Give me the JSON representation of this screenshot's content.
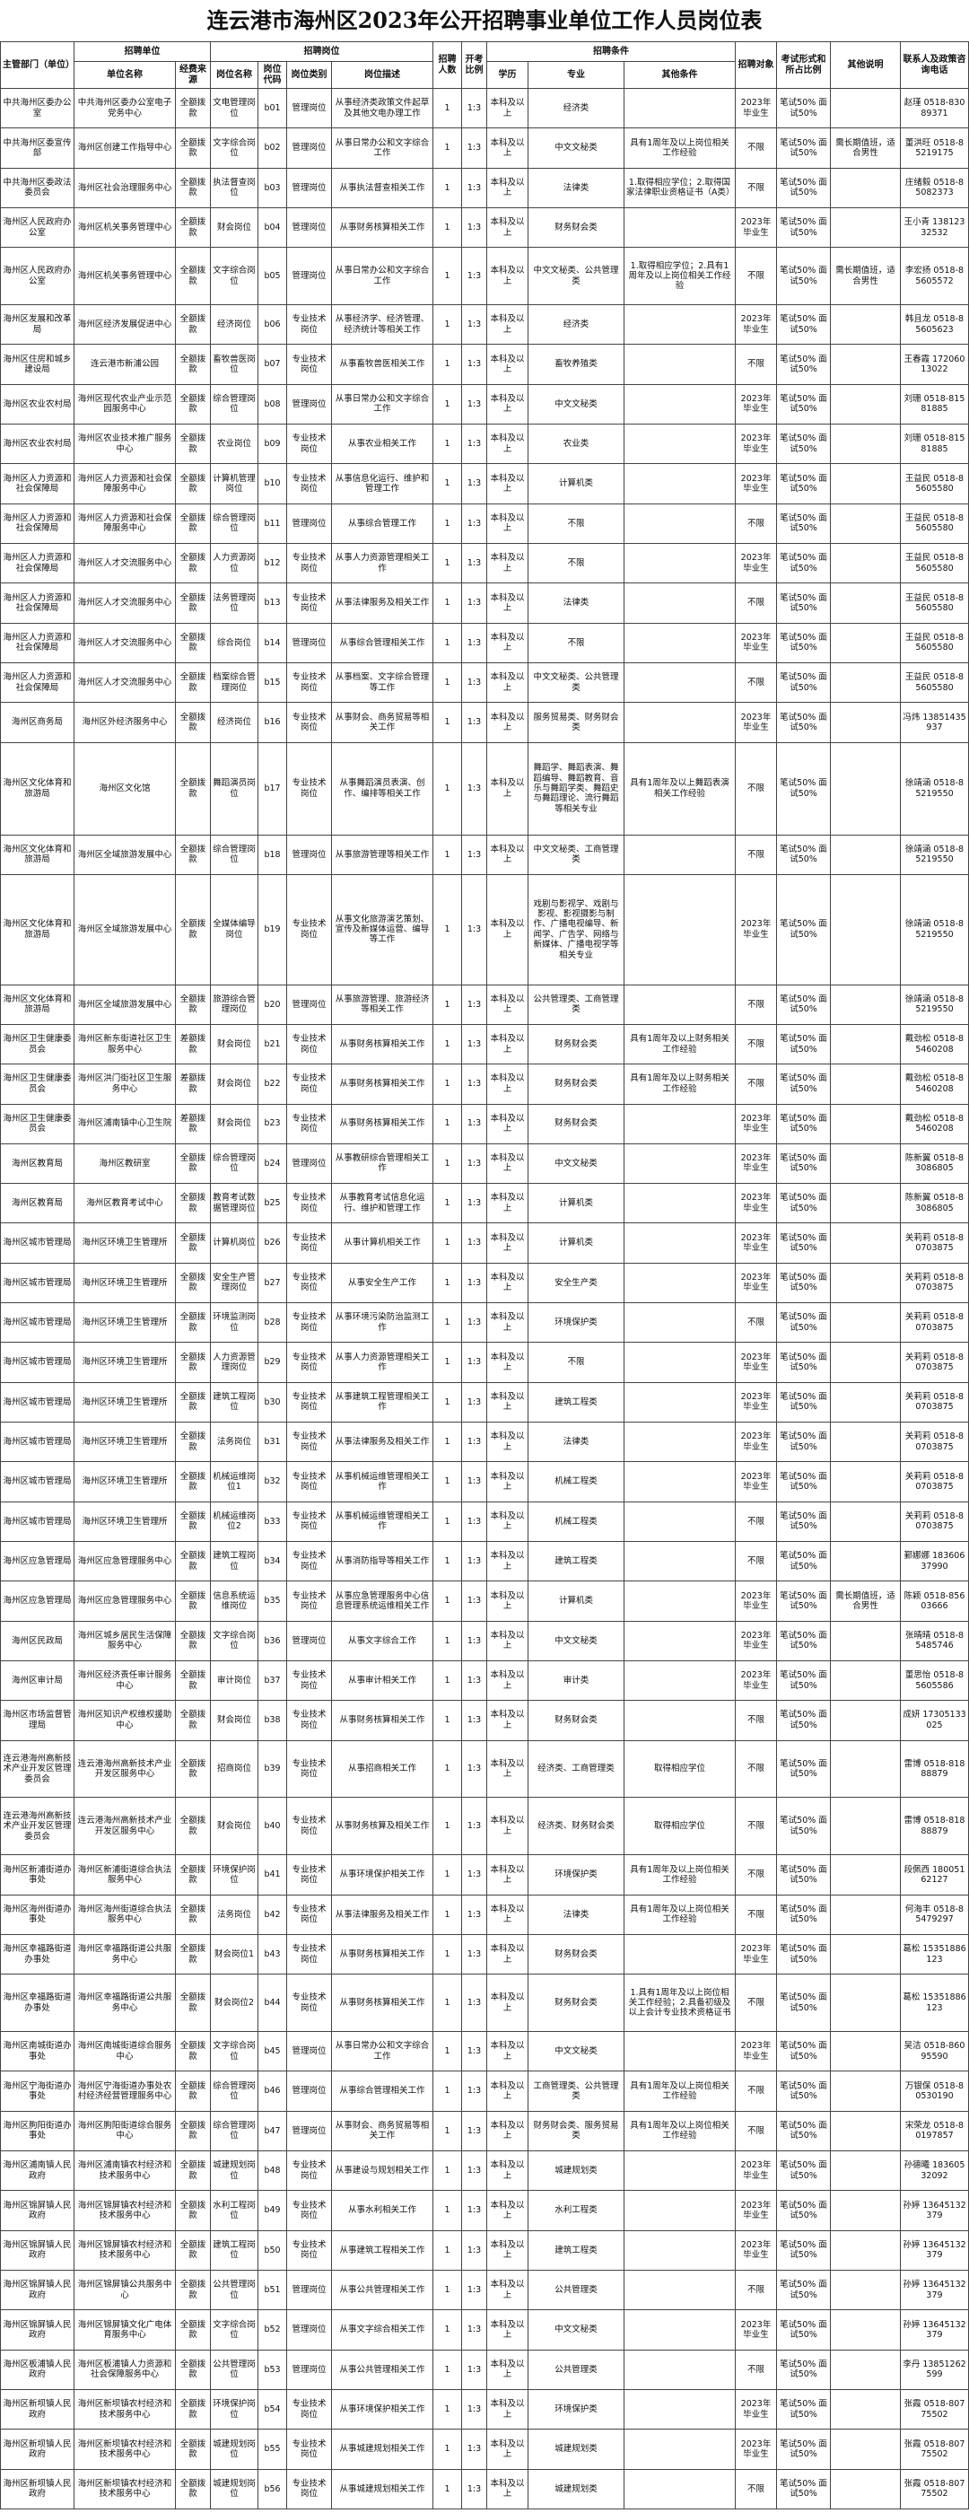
{
  "title": "连云港市海州区2023年公开招聘事业单位工作人员岗位表",
  "header": {
    "groups": [
      "招聘单位",
      "招聘岗位",
      "招聘条件"
    ],
    "columns": [
      "主管部门（单位）",
      "单位名称",
      "经费来源",
      "岗位名称",
      "岗位代码",
      "岗位类别",
      "岗位描述",
      "招聘人数",
      "开考比例",
      "学历",
      "专业",
      "其他条件",
      "招聘对象",
      "考试形式和所占比例",
      "其他说明",
      "联系人及政策咨询电话"
    ]
  },
  "table": {
    "rows": [
      [
        "中共海州区委办公室",
        "中共海州区委办公室电子党务中心",
        "全额拨款",
        "文电管理岗位",
        "b01",
        "管理岗位",
        "从事经济类政策文件起草及其他文电办理工作",
        "1",
        "1:3",
        "本科及以上",
        "经济类",
        null,
        "2023年毕业生",
        "笔试50% 面试50%",
        null,
        "赵瑾 0518-83089371"
      ],
      [
        "中共海州区委宣传部",
        "海州区创建工作指导中心",
        "全额拨款",
        "文字综合岗位",
        "b02",
        "管理岗位",
        "从事日常办公和文字综合工作",
        "1",
        "1:3",
        "本科及以上",
        "中文文秘类",
        "具有1周年及以上岗位相关工作经验",
        "不限",
        "笔试50% 面试50%",
        "需长期值班，适合男性",
        "董洪旺 0518-85219175"
      ],
      [
        "中共海州区委政法委员会",
        "海州区社会治理服务中心",
        "全额拨款",
        "执法督查岗位",
        "b03",
        "管理岗位",
        "从事执法督查相关工作",
        "1",
        "1:3",
        "本科及以上",
        "法律类",
        "1.取得相应学位；2.取得国家法律职业资格证书（A类）",
        "不限",
        "笔试50% 面试50%",
        null,
        "庄绪毅 0518-85082373"
      ],
      [
        "海州区人民政府办公室",
        "海州区机关事务管理中心",
        "全额拨款",
        "财会岗位",
        "b04",
        "管理岗位",
        "从事财务核算相关工作",
        "1",
        "1:3",
        "本科及以上",
        "财务财会类",
        null,
        "2023年毕业生",
        "笔试50% 面试50%",
        null,
        "王小青 13812332532"
      ],
      [
        "海州区人民政府办公室",
        "海州区机关事务管理中心",
        "全额拨款",
        "文字综合岗位",
        "b05",
        "管理岗位",
        "从事日常办公和文字综合工作",
        "1",
        "1:3",
        "本科及以上",
        "中文文秘类、公共管理类",
        "1.取得相应学位；2.具有1周年及以上岗位相关工作经验",
        "不限",
        "笔试50% 面试50%",
        "需长期值班，适合男性",
        "李宏扬 0518-85605572"
      ],
      [
        "海州区发展和改革局",
        "海州区经济发展促进中心",
        "全额拨款",
        "经济岗位",
        "b06",
        "专业技术岗位",
        "从事经济学、经济管理、经济统计等相关工作",
        "1",
        "1:3",
        "本科及以上",
        "经济类",
        null,
        "2023年毕业生",
        "笔试50% 面试50%",
        null,
        "韩且龙 0518-85605623"
      ],
      [
        "海州区住房和城乡建设局",
        "连云港市新浦公园",
        "全额拨款",
        "畜牧兽医岗位",
        "b07",
        "专业技术岗位",
        "从事畜牧兽医相关工作",
        "1",
        "1:3",
        "本科及以上",
        "畜牧养殖类",
        null,
        "不限",
        "笔试50% 面试50%",
        null,
        "王春霞 17206013022"
      ],
      [
        "海州区农业农村局",
        "海州区现代农业产业示范园服务中心",
        "全额拨款",
        "综合管理岗位",
        "b08",
        "管理岗位",
        "从事日常办公和文字综合工作",
        "1",
        "1:3",
        "本科及以上",
        "中文文秘类",
        null,
        "2023年毕业生",
        "笔试50% 面试50%",
        null,
        "刘珊 0518-81581885"
      ],
      [
        "海州区农业农村局",
        "海州区农业技术推广服务中心",
        "全额拨款",
        "农业岗位",
        "b09",
        "专业技术岗位",
        "从事农业相关工作",
        "1",
        "1:3",
        "本科及以上",
        "农业类",
        null,
        "2023年毕业生",
        "笔试50% 面试50%",
        null,
        "刘珊 0518-81581885"
      ],
      [
        "海州区人力资源和社会保障局",
        "海州区人力资源和社会保障服务中心",
        "全额拨款",
        "计算机管理岗位",
        "b10",
        "专业技术岗位",
        "从事信息化运行、维护和管理工作",
        "1",
        "1:3",
        "本科及以上",
        "计算机类",
        null,
        "2023年毕业生",
        "笔试50% 面试50%",
        null,
        "王益民 0518-85605580"
      ],
      [
        "海州区人力资源和社会保障局",
        "海州区人力资源和社会保障服务中心",
        "全额拨款",
        "综合管理岗位",
        "b11",
        "管理岗位",
        "从事综合管理工作",
        "1",
        "1:3",
        "本科及以上",
        "不限",
        null,
        "不限",
        "笔试50% 面试50%",
        null,
        "王益民 0518-85605580"
      ],
      [
        "海州区人力资源和社会保障局",
        "海州区人才交流服务中心",
        "全额拨款",
        "人力资源岗位",
        "b12",
        "专业技术岗位",
        "从事人力资源管理相关工作",
        "1",
        "1:3",
        "本科及以上",
        "不限",
        null,
        "2023年毕业生",
        "笔试50% 面试50%",
        null,
        "王益民 0518-85605580"
      ],
      [
        "海州区人力资源和社会保障局",
        "海州区人才交流服务中心",
        "全额拨款",
        "法务管理岗位",
        "b13",
        "专业技术岗位",
        "从事法律服务及相关工作",
        "1",
        "1:3",
        "本科及以上",
        "法律类",
        null,
        "不限",
        "笔试50% 面试50%",
        null,
        "王益民 0518-85605580"
      ],
      [
        "海州区人力资源和社会保障局",
        "海州区人才交流服务中心",
        "全额拨款",
        "综合岗位",
        "b14",
        "管理岗位",
        "从事综合管理相关工作",
        "1",
        "1:3",
        "本科及以上",
        "不限",
        null,
        "2023年毕业生",
        "笔试50% 面试50%",
        null,
        "王益民 0518-85605580"
      ],
      [
        "海州区人力资源和社会保障局",
        "海州区人才交流服务中心",
        "全额拨款",
        "档案综合管理岗位",
        "b15",
        "专业技术岗位",
        "从事档案、文字综合管理等工作",
        "1",
        "1:3",
        "本科及以上",
        "中文文秘类、公共管理类",
        null,
        "不限",
        "笔试50% 面试50%",
        null,
        "王益民 0518-85605580"
      ],
      [
        "海州区商务局",
        "海州区外经济服务中心",
        "全额拨款",
        "经济岗位",
        "b16",
        "专业技术岗位",
        "从事财会、商务贸易等相关工作",
        "1",
        "1:3",
        "本科及以上",
        "服务贸易类、财务财会类",
        null,
        "2023年毕业生",
        "笔试50% 面试50%",
        null,
        "冯炜 13851435937"
      ],
      [
        "海州区文化体育和旅游局",
        "海州区文化馆",
        "全额拨款",
        "舞蹈演员岗位",
        "b17",
        "专业技术岗位",
        "从事舞蹈演员表演、创作、编排等相关工作",
        "1",
        "1:3",
        "本科及以上",
        "舞蹈学、舞蹈表演、舞蹈编导、舞蹈教育、音乐与舞蹈学类、舞蹈史与舞蹈理论、流行舞蹈等相关专业",
        "具有1周年及以上舞蹈表演相关工作经验",
        "不限",
        "笔试50% 面试50%",
        null,
        "徐靖涵 0518-85219550"
      ],
      [
        "海州区文化体育和旅游局",
        "海州区全域旅游发展中心",
        "全额拨款",
        "综合管理岗位",
        "b18",
        "管理岗位",
        "从事旅游管理等相关工作",
        "1",
        "1:3",
        "本科及以上",
        "中文文秘类、工商管理类",
        null,
        "不限",
        "笔试50% 面试50%",
        null,
        "徐靖涵 0518-85219550"
      ],
      [
        "海州区文化体育和旅游局",
        "海州区全域旅游发展中心",
        "全额拨款",
        "全媒体编导岗位",
        "b19",
        "专业技术岗位",
        "从事文化旅游演艺策划、宣传及新媒体运营、编导等工作",
        "1",
        "1:3",
        "本科及以上",
        "戏剧与影视学、戏剧与影视、影视摄影与制作、广播电视编导、新闻学、广告学、网络与新媒体、广播电视学等相关专业",
        null,
        "2023年毕业生",
        "笔试50% 面试50%",
        null,
        "徐靖涵 0518-85219550"
      ],
      [
        "海州区文化体育和旅游局",
        "海州区全域旅游发展中心",
        "全额拨款",
        "旅游综合管理岗位",
        "b20",
        "管理岗位",
        "从事旅游管理、旅游经济等相关工作",
        "1",
        "1:3",
        "本科及以上",
        "公共管理类、工商管理类",
        null,
        "不限",
        "笔试50% 面试50%",
        null,
        "徐靖涵 0518-85219550"
      ],
      [
        "海州区卫生健康委员会",
        "海州区新东街道社区卫生服务中心",
        "差额拨款",
        "财会岗位",
        "b21",
        "专业技术岗位",
        "从事财务核算相关工作",
        "1",
        "1:3",
        "本科及以上",
        "财务财会类",
        "具有1周年及以上财务相关工作经验",
        "不限",
        "笔试50% 面试50%",
        null,
        "戴劲松 0518-85460208"
      ],
      [
        "海州区卫生健康委员会",
        "海州区洪门街社区卫生服务中心",
        "差额拨款",
        "财会岗位",
        "b22",
        "专业技术岗位",
        "从事财务核算相关工作",
        "1",
        "1:3",
        "本科及以上",
        "财务财会类",
        "具有1周年及以上财务相关工作经验",
        "不限",
        "笔试50% 面试50%",
        null,
        "戴劲松 0518-85460208"
      ],
      [
        "海州区卫生健康委员会",
        "海州区浦南镇中心卫生院",
        "差额拨款",
        "财会岗位",
        "b23",
        "专业技术岗位",
        "从事财务核算相关工作",
        "1",
        "1:3",
        "本科及以上",
        "财务财会类",
        null,
        "2023年毕业生",
        "笔试50% 面试50%",
        null,
        "戴劲松 0518-85460208"
      ],
      [
        "海州区教育局",
        "海州区教研室",
        "全额拨款",
        "综合管理岗位",
        "b24",
        "管理岗位",
        "从事教研综合管理相关工作",
        "1",
        "1:3",
        "本科及以上",
        "中文文秘类",
        null,
        "2023年毕业生",
        "笔试50% 面试50%",
        null,
        "陈新翼 0518-83086805"
      ],
      [
        "海州区教育局",
        "海州区教育考试中心",
        "全额拨款",
        "教育考试数据管理岗位",
        "b25",
        "专业技术岗位",
        "从事教育考试信息化运行、维护和管理工作",
        "1",
        "1:3",
        "本科及以上",
        "计算机类",
        null,
        "2023年毕业生",
        "笔试50% 面试50%",
        null,
        "陈新翼 0518-83086805"
      ],
      [
        "海州区城市管理局",
        "海州区环境卫生管理所",
        "全额拨款",
        "计算机岗位",
        "b26",
        "专业技术岗位",
        "从事计算机相关工作",
        "1",
        "1:3",
        "本科及以上",
        "计算机类",
        null,
        "2023年毕业生",
        "笔试50% 面试50%",
        null,
        "关莉莉 0518-80703875"
      ],
      [
        "海州区城市管理局",
        "海州区环境卫生管理所",
        "全额拨款",
        "安全生产管理岗位",
        "b27",
        "专业技术岗位",
        "从事安全生产工作",
        "1",
        "1:3",
        "本科及以上",
        "安全生产类",
        null,
        "2023年毕业生",
        "笔试50% 面试50%",
        null,
        "关莉莉 0518-80703875"
      ],
      [
        "海州区城市管理局",
        "海州区环境卫生管理所",
        "全额拨款",
        "环境监测岗位",
        "b28",
        "专业技术岗位",
        "从事环境污染防治监测工作",
        "1",
        "1:3",
        "本科及以上",
        "环境保护类",
        null,
        "不限",
        "笔试50% 面试50%",
        null,
        "关莉莉 0518-80703875"
      ],
      [
        "海州区城市管理局",
        "海州区环境卫生管理所",
        "全额拨款",
        "人力资源管理岗位",
        "b29",
        "专业技术岗位",
        "从事人力资源管理相关工作",
        "1",
        "1:3",
        "本科及以上",
        "不限",
        null,
        "2023年毕业生",
        "笔试50% 面试50%",
        null,
        "关莉莉 0518-80703875"
      ],
      [
        "海州区城市管理局",
        "海州区环境卫生管理所",
        "全额拨款",
        "建筑工程岗位",
        "b30",
        "专业技术岗位",
        "从事建筑工程管理相关工作",
        "1",
        "1:3",
        "本科及以上",
        "建筑工程类",
        null,
        "2023年毕业生",
        "笔试50% 面试50%",
        null,
        "关莉莉 0518-80703875"
      ],
      [
        "海州区城市管理局",
        "海州区环境卫生管理所",
        "全额拨款",
        "法务岗位",
        "b31",
        "专业技术岗位",
        "从事法律服务及相关工作",
        "1",
        "1:3",
        "本科及以上",
        "法律类",
        null,
        "2023年毕业生",
        "笔试50% 面试50%",
        null,
        "关莉莉 0518-80703875"
      ],
      [
        "海州区城市管理局",
        "海州区环境卫生管理所",
        "全额拨款",
        "机械运维岗位1",
        "b32",
        "专业技术岗位",
        "从事机械运维管理相关工作",
        "1",
        "1:3",
        "本科及以上",
        "机械工程类",
        null,
        "2023年毕业生",
        "笔试50% 面试50%",
        null,
        "关莉莉 0518-80703875"
      ],
      [
        "海州区城市管理局",
        "海州区环境卫生管理所",
        "全额拨款",
        "机械运维岗位2",
        "b33",
        "专业技术岗位",
        "从事机械运维管理相关工作",
        "1",
        "1:3",
        "本科及以上",
        "机械工程类",
        null,
        "不限",
        "笔试50% 面试50%",
        null,
        "关莉莉 0518-80703875"
      ],
      [
        "海州区应急管理局",
        "海州区应急管理服务中心",
        "全额拨款",
        "建筑工程岗位",
        "b34",
        "专业技术岗位",
        "从事消防指导等相关工作",
        "1",
        "1:3",
        "本科及以上",
        "建筑工程类",
        null,
        "不限",
        "笔试50% 面试50%",
        null,
        "鄞娜娜 18360637990"
      ],
      [
        "海州区应急管理局",
        "海州区应急管理服务中心",
        "全额拨款",
        "信息系统运维岗位",
        "b35",
        "专业技术岗位",
        "从事应急管理服务中心信息管理系统运维相关工作",
        "1",
        "1:3",
        "本科及以上",
        "计算机类",
        null,
        "2023年毕业生",
        "笔试50% 面试50%",
        "需长期值班，适合男性",
        "陈颖 0518-85603666"
      ],
      [
        "海州区民政局",
        "海州区城乡居民生活保障服务中心",
        "全额拨款",
        "文字综合岗位",
        "b36",
        "管理岗位",
        "从事文字综合工作",
        "1",
        "1:3",
        "本科及以上",
        "中文文秘类",
        null,
        "2023年毕业生",
        "笔试50% 面试50%",
        null,
        "张晴晴 0518-85485746"
      ],
      [
        "海州区审计局",
        "海州区经济责任审计服务中心",
        "全额拨款",
        "审计岗位",
        "b37",
        "专业技术岗位",
        "从事审计相关工作",
        "1",
        "1:3",
        "本科及以上",
        "审计类",
        null,
        "2023年毕业生",
        "笔试50% 面试50%",
        null,
        "董思怡 0518-85605586"
      ],
      [
        "海州区市场监督管理局",
        "海州区知识产权维权援助中心",
        "全额拨款",
        "财会岗位",
        "b38",
        "专业技术岗位",
        "从事财务核算相关工作",
        "1",
        "1:3",
        "本科及以上",
        "财务财会类",
        null,
        "不限",
        "笔试50% 面试50%",
        null,
        "成妍 17305133025"
      ],
      [
        "连云港海州高新技术产业开发区管理委员会",
        "连云港海州高新技术产业开发区服务中心",
        "全额拨款",
        "招商岗位",
        "b39",
        "专业技术岗位",
        "从事招商相关工作",
        "1",
        "1:3",
        "本科及以上",
        "经济类、工商管理类",
        "取得相应学位",
        "不限",
        "笔试50% 面试50%",
        null,
        "雷博 0518-81888879"
      ],
      [
        "连云港海州高新技术产业开发区管理委员会",
        "连云港海州高新技术产业开发区服务中心",
        "全额拨款",
        "财会岗位",
        "b40",
        "专业技术岗位",
        "从事财务核算及相关工作",
        "1",
        "1:3",
        "本科及以上",
        "经济类、财务财会类",
        "取得相应学位",
        "不限",
        "笔试50% 面试50%",
        null,
        "雷博 0518-81888879"
      ],
      [
        "海州区新浦街道办事处",
        "海州区新浦街道综合执法服务中心",
        "全额拨款",
        "环境保护岗位",
        "b41",
        "专业技术岗位",
        "从事环境保护相关工作",
        "1",
        "1:3",
        "本科及以上",
        "环境保护类",
        "具有1周年及以上岗位相关工作经验",
        "不限",
        "笔试50% 面试50%",
        null,
        "段佩西 18005162127"
      ],
      [
        "海州区海州街道办事处",
        "海州区海州街道综合执法服务中心",
        "全额拨款",
        "法务岗位",
        "b42",
        "专业技术岗位",
        "从事法律服务及相关工作",
        "1",
        "1:3",
        "本科及以上",
        "法律类",
        "具有1周年及以上岗位相关工作经验",
        "不限",
        "笔试50% 面试50%",
        null,
        "何海丰 0518-85479297"
      ],
      [
        "海州区幸福路街道办事处",
        "海州区幸福路街道公共服务中心",
        "全额拨款",
        "财会岗位1",
        "b43",
        "专业技术岗位",
        "从事财务核算相关工作",
        "1",
        "1:3",
        "本科及以上",
        "财务财会类",
        null,
        "2023年毕业生",
        "笔试50% 面试50%",
        null,
        "葛松 15351886123"
      ],
      [
        "海州区幸福路街道办事处",
        "海州区幸福路街道公共服务中心",
        "全额拨款",
        "财会岗位2",
        "b44",
        "专业技术岗位",
        "从事财务核算相关工作",
        "1",
        "1:3",
        "本科及以上",
        "财务财会类",
        "1.具有1周年及以上岗位相关工作经验；2.具备初级及以上会计专业技术资格证书",
        "不限",
        "笔试50% 面试50%",
        null,
        "葛松 15351886123"
      ],
      [
        "海州区南城街道办事处",
        "海州区南城街道综合服务中心",
        "全额拨款",
        "文字综合岗位",
        "b45",
        "管理岗位",
        "从事日常办公和文字综合工作",
        "1",
        "1:3",
        "本科及以上",
        "中文文秘类",
        null,
        "2023年毕业生",
        "笔试50% 面试50%",
        null,
        "吴洁 0518-86095590"
      ],
      [
        "海州区宁海街道办事处",
        "海州区宁海街道办事处农村经济经营管理服务中心",
        "全额拨款",
        "综合管理岗位",
        "b46",
        "管理岗位",
        "从事综合管理相关工作",
        "1",
        "1:3",
        "本科及以上",
        "工商管理类、公共管理类",
        "具有1周年及以上岗位相关工作经验",
        "不限",
        "笔试50% 面试50%",
        null,
        "万银保 0518-80530190"
      ],
      [
        "海州区朐阳街道办事处",
        "海州区朐阳街道综合服务中心",
        "全额拨款",
        "综合管理岗位",
        "b47",
        "管理岗位",
        "从事财会、商务贸易等相关工作",
        "1",
        "1:3",
        "本科及以上",
        "财务财会类、服务贸易类",
        "具有1周年及以上岗位相关工作经验",
        "不限",
        "笔试50% 面试50%",
        null,
        "宋荣龙 0518-80197857"
      ],
      [
        "海州区浦南镇人民政府",
        "海州区浦南镇农村经济和技术服务中心",
        "全额拨款",
        "城建规划岗位",
        "b48",
        "专业技术岗位",
        "从事建设与规划相关工作",
        "1",
        "1:3",
        "本科及以上",
        "城建规划类",
        null,
        "2023年毕业生",
        "笔试50% 面试50%",
        null,
        "孙德曦 18360532092"
      ],
      [
        "海州区锦屏镇人民政府",
        "海州区锦屏镇农村经济和技术服务中心",
        "全额拨款",
        "水利工程岗位",
        "b49",
        "专业技术岗位",
        "从事水利相关工作",
        "1",
        "1:3",
        "本科及以上",
        "水利工程类",
        null,
        "2023年毕业生",
        "笔试50% 面试50%",
        null,
        "孙婷 13645132379"
      ],
      [
        "海州区锦屏镇人民政府",
        "海州区锦屏镇农村经济和技术服务中心",
        "全额拨款",
        "建筑工程岗位",
        "b50",
        "专业技术岗位",
        "从事建筑工程相关工作",
        "1",
        "1:3",
        "本科及以上",
        "建筑工程类",
        null,
        "2023年毕业生",
        "笔试50% 面试50%",
        null,
        "孙婷 13645132379"
      ],
      [
        "海州区锦屏镇人民政府",
        "海州区锦屏镇公共服务中心",
        "全额拨款",
        "公共管理岗位",
        "b51",
        "管理岗位",
        "从事公共管理相关工作",
        "1",
        "1:3",
        "本科及以上",
        "公共管理类",
        null,
        "不限",
        "笔试50% 面试50%",
        null,
        "孙婷 13645132379"
      ],
      [
        "海州区锦屏镇人民政府",
        "海州区锦屏镇文化广电体育服务中心",
        "全额拨款",
        "文字综合岗位",
        "b52",
        "管理岗位",
        "从事文字综合相关工作",
        "1",
        "1:3",
        "本科及以上",
        "中文文秘类",
        null,
        "2023年毕业生",
        "笔试50% 面试50%",
        null,
        "孙婷 13645132379"
      ],
      [
        "海州区板浦镇人民政府",
        "海州区板浦镇人力资源和社会保障服务中心",
        "全额拨款",
        "公共管理岗位",
        "b53",
        "管理岗位",
        "从事公共管理相关工作",
        "1",
        "1:3",
        "本科及以上",
        "公共管理类",
        null,
        "不限",
        "笔试50% 面试50%",
        null,
        "李丹 13851262599"
      ],
      [
        "海州区新坝镇人民政府",
        "海州区新坝镇农村经济和技术服务中心",
        "全额拨款",
        "环境保护岗位",
        "b54",
        "专业技术岗位",
        "从事环境保护相关工作",
        "1",
        "1:3",
        "本科及以上",
        "环境保护类",
        null,
        "2023年毕业生",
        "笔试50% 面试50%",
        null,
        "张霞 0518-80775502"
      ],
      [
        "海州区新坝镇人民政府",
        "海州区新坝镇农村经济和技术服务中心",
        "全额拨款",
        "城建规划岗位",
        "b55",
        "专业技术岗位",
        "从事城建规划相关工作",
        "1",
        "1:3",
        "本科及以上",
        "城建规划类",
        null,
        "2023年毕业生",
        "笔试50% 面试50%",
        null,
        "张霞 0518-80775502"
      ],
      [
        "海州区新坝镇人民政府",
        "海州区新坝镇农村经济和技术服务中心",
        "全额拨款",
        "城建规划岗位",
        "b56",
        "专业技术岗位",
        "从事城建规划相关工作",
        "1",
        "1:3",
        "本科及以上",
        "城建规划类",
        null,
        "不限",
        "笔试50% 面试50%",
        null,
        "张霞 0518-80775502"
      ]
    ]
  }
}
